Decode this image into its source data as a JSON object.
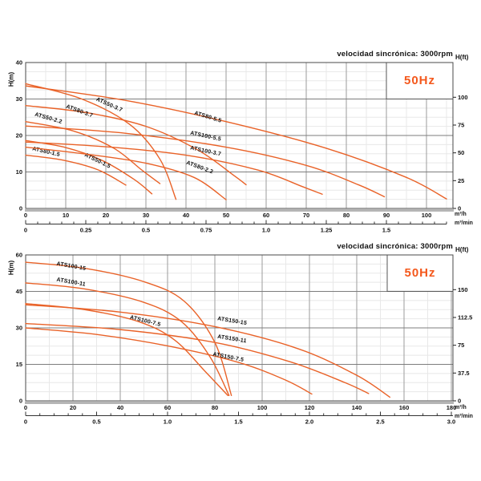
{
  "colors": {
    "curve": "#e96228",
    "accent": "#f4581c",
    "grid_minor": "#e8e8e8",
    "grid_major_v": "#9b9b9b",
    "grid_major_h": "#7d7d7d",
    "border": "#4a4a4a",
    "axis_bar": "#b5b5b5",
    "tick": "#222222",
    "text": "#111111"
  },
  "chart_data": [
    {
      "type": "line",
      "title": "velocidad sincrónica: 3000rpm",
      "frequency_label": "50Hz",
      "ylabel_left": "H(m)",
      "ylabel_right": "H(ft)",
      "xunit_primary": "m³/h",
      "xunit_secondary": "m³/min",
      "xlim_m3h": [
        0,
        106.6
      ],
      "ylim_m": [
        0,
        40
      ],
      "y_ticks_m": [
        0,
        10,
        20,
        30,
        40
      ],
      "y_ticks_ft": [
        0,
        25,
        50,
        75,
        100
      ],
      "x_ticks_m3h": [
        0,
        10,
        20,
        30,
        40,
        50,
        60,
        70,
        80,
        90,
        100
      ],
      "x_ticks_m3min": [
        "0",
        "0.25",
        "0.5",
        "0.75",
        "1.0",
        "1.25",
        "1.5"
      ],
      "series": [
        {
          "name": "ATS50-1.5",
          "points": [
            [
              0,
              18.6
            ],
            [
              10,
              16.7
            ],
            [
              19,
              13.2
            ],
            [
              27,
              8
            ],
            [
              31.5,
              4
            ]
          ],
          "label_q": 14.6,
          "label_h": 14.4,
          "label_rot": 26
        },
        {
          "name": "ATS50-2.2",
          "points": [
            [
              0,
              23.8
            ],
            [
              12,
              21.2
            ],
            [
              22,
              16.5
            ],
            [
              29,
              10.5
            ],
            [
              33.5,
              6.8
            ]
          ],
          "label_q": 2.2,
          "label_h": 25.4,
          "label_rot": 16
        },
        {
          "name": "ATS50-3.7",
          "points": [
            [
              0,
              34.2
            ],
            [
              14,
              30
            ],
            [
              26,
              23
            ],
            [
              33.5,
              13.5
            ],
            [
              37.5,
              2.5
            ]
          ],
          "label_q": 17.5,
          "label_h": 29.6,
          "label_rot": 24
        },
        {
          "name": "ATS80-1.5",
          "points": [
            [
              0,
              14.6
            ],
            [
              9,
              13.3
            ],
            [
              18,
              10.6
            ],
            [
              25,
              6.4
            ]
          ],
          "label_q": 1.6,
          "label_h": 16.0,
          "label_rot": 13
        },
        {
          "name": "ATS80-2.2",
          "points": [
            [
              0,
              16.8
            ],
            [
              15,
              14.9
            ],
            [
              30,
              12.4
            ],
            [
              42,
              8.5
            ],
            [
              50,
              2.4
            ]
          ],
          "label_q": 40,
          "label_h": 12.2,
          "label_rot": 20
        },
        {
          "name": "ATS80-3.7",
          "points": [
            [
              0,
              28.2
            ],
            [
              15,
              26.3
            ],
            [
              30,
              22.5
            ],
            [
              43,
              16
            ],
            [
              52,
              9
            ],
            [
              55,
              6.5
            ]
          ],
          "label_q": 10,
          "label_h": 27.6,
          "label_rot": 20
        },
        {
          "name": "ATS80-5.5",
          "points": [
            [
              0,
              33.6
            ],
            [
              25,
              29.6
            ],
            [
              50,
              23.8
            ],
            [
              75,
              16.5
            ],
            [
              95,
              8.5
            ],
            [
              105,
              2.6
            ]
          ],
          "label_q": 42,
          "label_h": 25.8,
          "label_rot": 17
        },
        {
          "name": "ATS100-3.7",
          "points": [
            [
              0,
              18.2
            ],
            [
              20,
              16.9
            ],
            [
              40,
              14.6
            ],
            [
              58,
              10.5
            ],
            [
              69,
              6
            ],
            [
              74,
              3.9
            ]
          ],
          "label_q": 41,
          "label_h": 16.2,
          "label_rot": 12
        },
        {
          "name": "ATS100-5.5",
          "points": [
            [
              0,
              22.6
            ],
            [
              25,
              20.6
            ],
            [
              50,
              16.8
            ],
            [
              70,
              11.8
            ],
            [
              83,
              6.5
            ],
            [
              89.5,
              3.2
            ]
          ],
          "label_q": 41,
          "label_h": 20.3,
          "label_rot": 12
        }
      ]
    },
    {
      "type": "line",
      "title": "velocidad sincrónica: 3000rpm",
      "frequency_label": "50Hz",
      "ylabel_left": "H(m)",
      "ylabel_right": "H(ft)",
      "xunit_primary": "m³/h",
      "xunit_secondary": "m³/min",
      "xlim_m3h": [
        0,
        180.7
      ],
      "ylim_m": [
        0,
        60
      ],
      "y_ticks_m": [
        0,
        15,
        30,
        45,
        60
      ],
      "y_ticks_ft": [
        0,
        37.5,
        75,
        112.5,
        150
      ],
      "x_ticks_m3h": [
        0,
        20,
        40,
        60,
        80,
        100,
        120,
        140,
        160,
        180
      ],
      "x_ticks_m3min": [
        "0",
        "0.5",
        "1.0",
        "1.5",
        "2.0",
        "2.5",
        "3.0"
      ],
      "series": [
        {
          "name": "ATS100-7.5",
          "points": [
            [
              0,
              40
            ],
            [
              25,
              37.5
            ],
            [
              48,
              32.5
            ],
            [
              63,
              25
            ],
            [
              76,
              12
            ],
            [
              85.5,
              2.2
            ]
          ],
          "label_q": 44,
          "label_h": 33.8,
          "label_rot": 14
        },
        {
          "name": "ATS100-11",
          "points": [
            [
              0,
              48.5
            ],
            [
              25,
              46
            ],
            [
              50,
              40.5
            ],
            [
              66,
              32.5
            ],
            [
              78,
              18
            ],
            [
              86,
              2.2
            ]
          ],
          "label_q": 13,
          "label_h": 49.3,
          "label_rot": 10
        },
        {
          "name": "ATS100-15",
          "points": [
            [
              0,
              57
            ],
            [
              25,
              54.5
            ],
            [
              50,
              49
            ],
            [
              67,
              41
            ],
            [
              80,
              24
            ],
            [
              87,
              2.2
            ]
          ],
          "label_q": 13,
          "label_h": 55.8,
          "label_rot": 10
        },
        {
          "name": "ATS150-7.5",
          "points": [
            [
              0,
              30
            ],
            [
              30,
              27.3
            ],
            [
              60,
              22.6
            ],
            [
              90,
              15.8
            ],
            [
              110,
              8.5
            ],
            [
              121,
              2.8
            ]
          ],
          "label_q": 79,
          "label_h": 18.6,
          "label_rot": 11
        },
        {
          "name": "ATS150-11",
          "points": [
            [
              0,
              31.8
            ],
            [
              40,
              29.3
            ],
            [
              80,
              24
            ],
            [
              112,
              16
            ],
            [
              135,
              7.5
            ],
            [
              145,
              3
            ]
          ],
          "label_q": 81,
          "label_h": 25.8,
          "label_rot": 9
        },
        {
          "name": "ATS150-15",
          "points": [
            [
              0,
              39.5
            ],
            [
              40,
              36.5
            ],
            [
              80,
              30.5
            ],
            [
              115,
              21.5
            ],
            [
              140,
              10.5
            ],
            [
              154,
              1.5
            ]
          ],
          "label_q": 81,
          "label_h": 33.2,
          "label_rot": 9
        }
      ]
    }
  ]
}
